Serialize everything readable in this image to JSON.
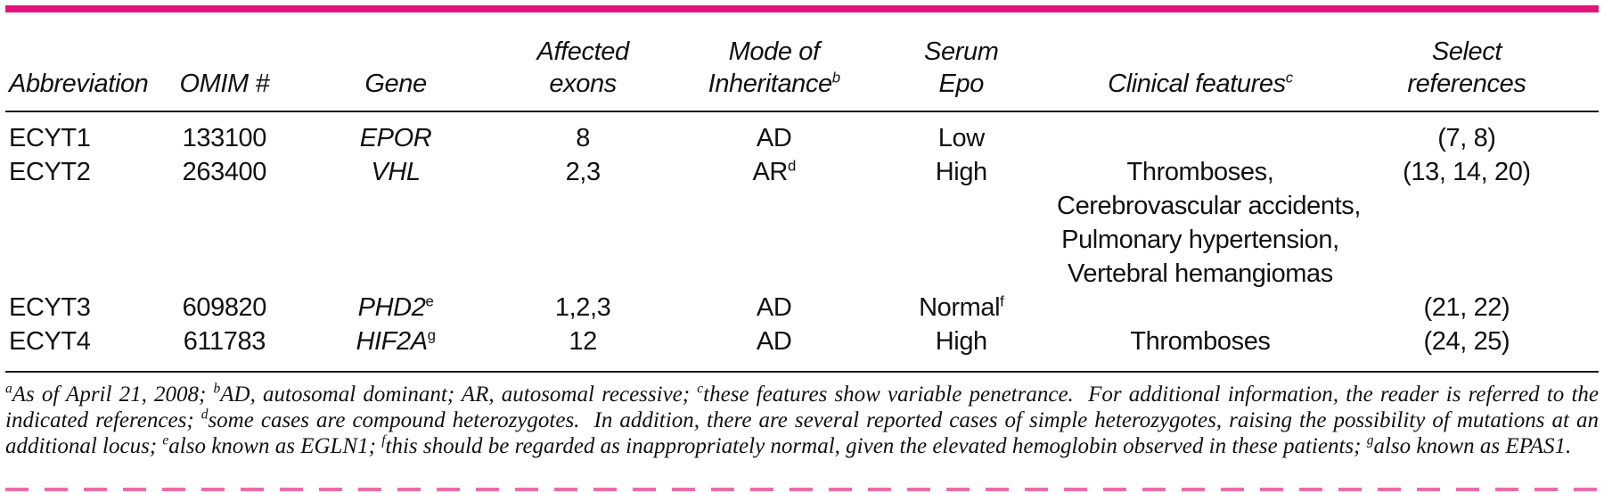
{
  "theme": {
    "accent": "#e4127b",
    "bottom_dash": "#ee6aab",
    "rule_color": "#1c1c1c"
  },
  "table": {
    "columns": [
      {
        "line1": "",
        "line2": "Abbreviation",
        "sup": ""
      },
      {
        "line1": "",
        "line2": "OMIM #",
        "sup": ""
      },
      {
        "line1": "",
        "line2": "Gene",
        "sup": ""
      },
      {
        "line1": "Affected",
        "line2": "exons",
        "sup": ""
      },
      {
        "line1": "Mode of",
        "line2": "Inheritance",
        "sup": "b"
      },
      {
        "line1": "Serum",
        "line2": "Epo",
        "sup": ""
      },
      {
        "line1": "",
        "line2": "Clinical features",
        "sup": "c"
      },
      {
        "line1": "Select",
        "line2": "references",
        "sup": ""
      }
    ],
    "rows": [
      {
        "abbreviation": "ECYT1",
        "omim": "133100",
        "gene": "EPOR",
        "gene_sup": "",
        "exons": "8",
        "inheritance": "AD",
        "inheritance_sup": "",
        "serum_epo": "Low",
        "serum_epo_sup": "",
        "clinical_features": [],
        "references": "(7, 8)"
      },
      {
        "abbreviation": "ECYT2",
        "omim": "263400",
        "gene": "VHL",
        "gene_sup": "",
        "exons": "2,3",
        "inheritance": "AR",
        "inheritance_sup": "d",
        "serum_epo": "High",
        "serum_epo_sup": "",
        "clinical_features": [
          "Thromboses,",
          "Cerebrovascular accidents,",
          "Pulmonary hypertension,",
          "Vertebral hemangiomas"
        ],
        "references": "(13, 14, 20)"
      },
      {
        "abbreviation": "ECYT3",
        "omim": "609820",
        "gene": "PHD2",
        "gene_sup": "e",
        "exons": "1,2,3",
        "inheritance": "AD",
        "inheritance_sup": "",
        "serum_epo": "Normal",
        "serum_epo_sup": "f",
        "clinical_features": [],
        "references": "(21, 22)"
      },
      {
        "abbreviation": "ECYT4",
        "omim": "611783",
        "gene": "HIF2A",
        "gene_sup": "g",
        "exons": "12",
        "inheritance": "AD",
        "inheritance_sup": "",
        "serum_epo": "High",
        "serum_epo_sup": "",
        "clinical_features": [
          "Thromboses"
        ],
        "references": "(24, 25)"
      }
    ]
  },
  "footnote": {
    "segments": [
      {
        "sup": "a",
        "text": "As of April 21, 2008; "
      },
      {
        "sup": "b",
        "text": "AD, autosomal dominant; AR, autosomal recessive; "
      },
      {
        "sup": "c",
        "text": "these features show variable penetrance.  For additional information, the reader is referred to the indicated references; "
      },
      {
        "sup": "d",
        "text": "some cases are compound heterozygotes.  In addition, there are several reported cases of simple heterozygotes, raising the possibility of mutations at an additional locus; "
      },
      {
        "sup": "e",
        "text": "also known as EGLN1; "
      },
      {
        "sup": "f",
        "text": "this should be regarded as inappropriately normal, given the elevated hemoglobin observed in these patients; "
      },
      {
        "sup": "g",
        "text": "also known as EPAS1."
      }
    ]
  }
}
